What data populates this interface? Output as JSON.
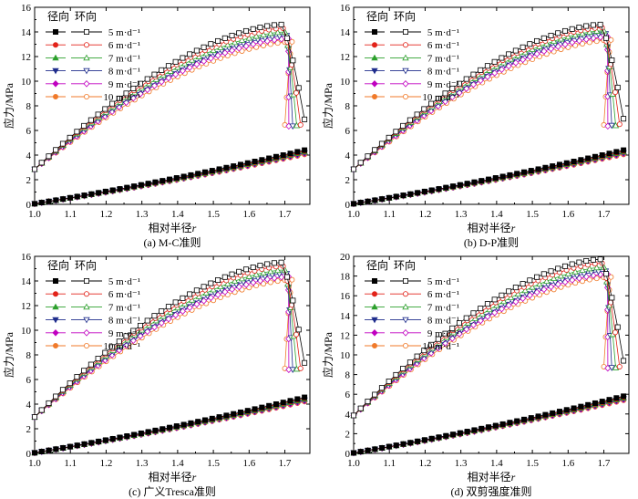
{
  "series_styles": [
    {
      "name": "5 m·d⁻¹",
      "color": "#000000",
      "marker": "square"
    },
    {
      "name": "6 m·d⁻¹",
      "color": "#e2231a",
      "marker": "circle"
    },
    {
      "name": "7 m·d⁻¹",
      "color": "#2ca02c",
      "marker": "triangle"
    },
    {
      "name": "8 m·d⁻¹",
      "color": "#1f2d8c",
      "marker": "triangle-down"
    },
    {
      "name": "9 m·d⁻¹",
      "color": "#c000c0",
      "marker": "diamond"
    },
    {
      "name": "10 m·d⁻¹",
      "color": "#f07a2a",
      "marker": "circle"
    }
  ],
  "legend_header": {
    "radial": "径向",
    "hoop": "环向"
  },
  "chart_data": [
    {
      "type": "line",
      "caption": "(a) M-C准则",
      "xlabel": "相对半径",
      "xlabel_var": "r",
      "ylabel": "应力/MPa",
      "xlim": [
        1.0,
        1.77
      ],
      "ylim": [
        0,
        16
      ],
      "xticks": [
        "1.0",
        "1.1",
        "1.2",
        "1.3",
        "1.4",
        "1.5",
        "1.6",
        "1.7"
      ],
      "yticks": [
        "0",
        "2",
        "4",
        "6",
        "8",
        "10",
        "12",
        "14",
        "16"
      ],
      "radial_start": 0.05,
      "radial_end": [
        4.4,
        4.32,
        4.25,
        4.18,
        4.12,
        4.05
      ],
      "hoop_start": 2.85,
      "hoop_peak_x": [
        1.69,
        1.695,
        1.7,
        1.705,
        1.71,
        1.72
      ],
      "hoop_peak_y": [
        14.6,
        14.3,
        14.0,
        13.7,
        13.45,
        13.2
      ],
      "hoop_final_y": [
        6.9,
        6.45,
        6.4,
        6.35,
        6.35,
        6.45
      ],
      "grid": false,
      "legend_position": "top-left"
    },
    {
      "type": "line",
      "caption": "(b) D-P准则",
      "xlabel": "相对半径",
      "xlabel_var": "r",
      "ylabel": "应力/MPa",
      "xlim": [
        1.0,
        1.77
      ],
      "ylim": [
        0,
        16
      ],
      "xticks": [
        "1.0",
        "1.1",
        "1.2",
        "1.3",
        "1.4",
        "1.5",
        "1.6",
        "1.7"
      ],
      "yticks": [
        "0",
        "2",
        "4",
        "6",
        "8",
        "10",
        "12",
        "14",
        "16"
      ],
      "radial_start": 0.05,
      "radial_end": [
        4.4,
        4.32,
        4.25,
        4.18,
        4.12,
        4.05
      ],
      "hoop_start": 2.85,
      "hoop_peak_x": [
        1.69,
        1.695,
        1.7,
        1.705,
        1.71,
        1.72
      ],
      "hoop_peak_y": [
        14.6,
        14.35,
        14.1,
        13.85,
        13.6,
        13.35
      ],
      "hoop_final_y": [
        6.95,
        6.5,
        6.4,
        6.4,
        6.35,
        6.45
      ],
      "grid": false,
      "legend_position": "top-left"
    },
    {
      "type": "line",
      "caption": "(c) 广义Tresca准则",
      "xlabel": "相对半径",
      "xlabel_var": "r",
      "ylabel": "应力/MPa",
      "xlim": [
        1.0,
        1.77
      ],
      "ylim": [
        0,
        16
      ],
      "xticks": [
        "1.0",
        "1.1",
        "1.2",
        "1.3",
        "1.4",
        "1.5",
        "1.6",
        "1.7"
      ],
      "yticks": [
        "0",
        "2",
        "4",
        "6",
        "8",
        "10",
        "12",
        "14",
        "16"
      ],
      "radial_start": 0.05,
      "radial_end": [
        4.55,
        4.48,
        4.4,
        4.33,
        4.26,
        4.2
      ],
      "hoop_start": 2.95,
      "hoop_peak_x": [
        1.69,
        1.695,
        1.7,
        1.705,
        1.71,
        1.72
      ],
      "hoop_peak_y": [
        15.5,
        15.2,
        14.9,
        14.6,
        14.35,
        14.1
      ],
      "hoop_final_y": [
        7.35,
        6.9,
        6.85,
        6.8,
        6.8,
        6.9
      ],
      "grid": false,
      "legend_position": "top-left"
    },
    {
      "type": "line",
      "caption": "(d) 双剪强度准则",
      "xlabel": "相对半径",
      "xlabel_var": "r",
      "ylabel": "应力/MPa",
      "xlim": [
        1.0,
        1.77
      ],
      "ylim": [
        0,
        20
      ],
      "xticks": [
        "1.0",
        "1.1",
        "1.2",
        "1.3",
        "1.4",
        "1.5",
        "1.6",
        "1.7"
      ],
      "yticks": [
        "0",
        "2",
        "4",
        "6",
        "8",
        "10",
        "12",
        "14",
        "16",
        "18",
        "20"
      ],
      "radial_start": 0.05,
      "radial_end": [
        5.8,
        5.7,
        5.62,
        5.54,
        5.46,
        5.38
      ],
      "hoop_start": 3.85,
      "hoop_peak_x": [
        1.69,
        1.695,
        1.7,
        1.705,
        1.71,
        1.72
      ],
      "hoop_peak_y": [
        19.7,
        19.3,
        18.9,
        18.5,
        18.2,
        17.9
      ],
      "hoop_final_y": [
        9.4,
        8.8,
        8.7,
        8.7,
        8.65,
        8.8
      ],
      "grid": false,
      "legend_position": "top-left"
    }
  ]
}
